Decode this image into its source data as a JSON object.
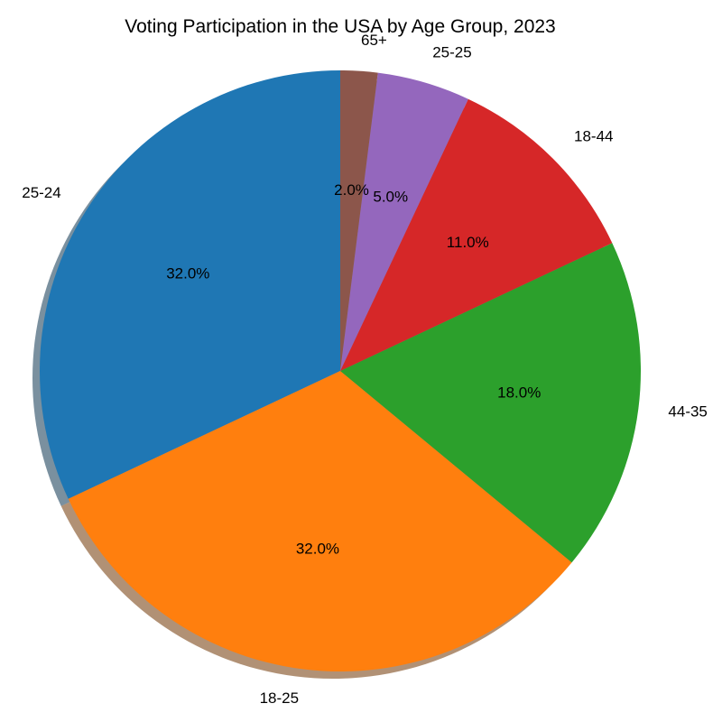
{
  "chart_data": {
    "type": "pie",
    "title": "Voting Participation in the USA by Age Group, 2023",
    "categories": [
      "25-24",
      "18-25",
      "44-35",
      "18-44",
      "25-25",
      "65+"
    ],
    "values": [
      32.0,
      32.0,
      18.0,
      11.0,
      5.0,
      2.0
    ],
    "value_labels": [
      "32.0%",
      "32.0%",
      "18.0%",
      "11.0%",
      "5.0%",
      "2.0%"
    ],
    "colors": [
      "#1f77b4",
      "#ff7f0e",
      "#2ca02c",
      "#d62728",
      "#9467bd",
      "#8c564b"
    ],
    "start_angle_deg": 90,
    "direction": "counterclockwise",
    "shadow": true,
    "legend": "none"
  }
}
